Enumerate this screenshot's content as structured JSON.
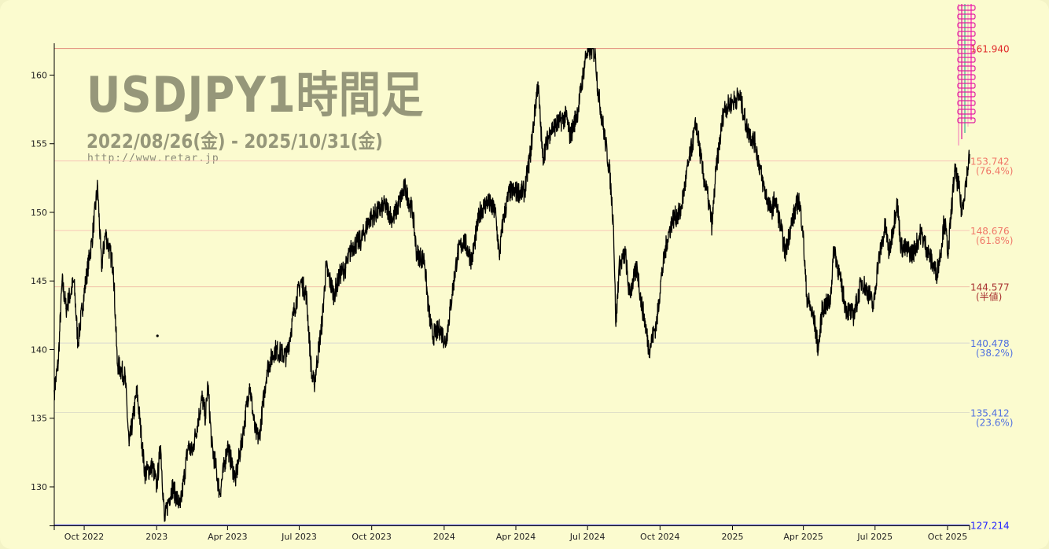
{
  "chart_data": {
    "type": "line",
    "title": "USDJPY1時間足",
    "subtitle": "2022/08/26(金) - 2025/10/31(金)",
    "watermark": "http://www.retar.jp",
    "xlabel": "",
    "ylabel": "",
    "xlim": [
      "2022-08-26",
      "2025-10-31"
    ],
    "ylim": [
      127.214,
      161.94
    ],
    "grid": false,
    "y_ticks": [
      130,
      135,
      140,
      145,
      150,
      155,
      160
    ],
    "x_ticks": [
      {
        "date": "2022-10-01",
        "label": "Oct 2022"
      },
      {
        "date": "2023-01-01",
        "label": "2023"
      },
      {
        "date": "2023-04-01",
        "label": "Apr 2023"
      },
      {
        "date": "2023-07-01",
        "label": "Jul 2023"
      },
      {
        "date": "2023-10-01",
        "label": "Oct 2023"
      },
      {
        "date": "2024-01-01",
        "label": "2024"
      },
      {
        "date": "2024-04-01",
        "label": "Apr 2024"
      },
      {
        "date": "2024-07-01",
        "label": "Jul 2024"
      },
      {
        "date": "2024-10-01",
        "label": "Oct 2024"
      },
      {
        "date": "2025-01-01",
        "label": "2025"
      },
      {
        "date": "2025-04-01",
        "label": "Apr 2025"
      },
      {
        "date": "2025-07-01",
        "label": "Jul 2025"
      },
      {
        "date": "2025-10-01",
        "label": "Oct 2025"
      }
    ],
    "fib_levels": [
      {
        "value": 161.94,
        "label": "161.940",
        "pct": "",
        "color": "#e02a2a",
        "line": "#e08a7a"
      },
      {
        "value": 153.742,
        "label": "153.742",
        "pct": "(76.4%)",
        "color": "#f07868",
        "line": "#f8c8b8"
      },
      {
        "value": 148.676,
        "label": "148.676",
        "pct": "(61.8%)",
        "color": "#f07868",
        "line": "#f8c8b8"
      },
      {
        "value": 144.577,
        "label": "144.577",
        "pct": "(半値)",
        "color": "#a83030",
        "line": "#f0c0a8"
      },
      {
        "value": 140.478,
        "label": "140.478",
        "pct": "(38.2%)",
        "color": "#5070e0",
        "line": "#d8d8d0"
      },
      {
        "value": 135.412,
        "label": "135.412",
        "pct": "(23.6%)",
        "color": "#5070e0",
        "line": "#e0e0c8"
      },
      {
        "value": 127.214,
        "label": "127.214",
        "pct": "",
        "color": "#2020ff",
        "line": "#8080e0"
      }
    ],
    "series": [
      {
        "color": "#000000",
        "x": [
          "2022-08-26",
          "2022-08-31",
          "2022-09-05",
          "2022-09-10",
          "2022-09-20",
          "2022-09-25",
          "2022-10-05",
          "2022-10-13",
          "2022-10-20",
          "2022-10-25",
          "2022-10-30",
          "2022-11-09",
          "2022-11-14",
          "2022-11-24",
          "2022-11-29",
          "2022-12-09",
          "2022-12-19",
          "2022-12-29",
          "2023-01-03",
          "2023-01-08",
          "2023-01-13",
          "2023-01-18",
          "2023-01-23",
          "2023-02-02",
          "2023-02-12",
          "2023-02-17",
          "2023-03-02",
          "2023-03-06",
          "2023-03-09",
          "2023-03-14",
          "2023-03-19",
          "2023-03-24",
          "2023-04-03",
          "2023-04-13",
          "2023-04-23",
          "2023-05-01",
          "2023-05-08",
          "2023-05-13",
          "2023-05-23",
          "2023-06-02",
          "2023-06-17",
          "2023-06-27",
          "2023-07-05",
          "2023-07-12",
          "2023-07-19",
          "2023-07-22",
          "2023-08-01",
          "2023-08-06",
          "2023-08-16",
          "2023-08-24",
          "2023-08-31",
          "2023-09-08",
          "2023-09-20",
          "2023-09-30",
          "2023-10-10",
          "2023-10-20",
          "2023-10-30",
          "2023-11-14",
          "2023-11-24",
          "2023-11-29",
          "2023-12-09",
          "2023-12-14",
          "2023-12-19",
          "2023-12-29",
          "2024-01-05",
          "2024-01-13",
          "2024-01-20",
          "2024-01-28",
          "2024-02-07",
          "2024-02-17",
          "2024-02-27",
          "2024-03-08",
          "2024-03-13",
          "2024-03-18",
          "2024-03-26",
          "2024-04-14",
          "2024-04-22",
          "2024-05-01",
          "2024-05-07",
          "2024-05-17",
          "2024-05-27",
          "2024-06-06",
          "2024-06-11",
          "2024-06-21",
          "2024-07-01",
          "2024-07-08",
          "2024-07-13",
          "2024-07-16",
          "2024-07-26",
          "2024-07-31",
          "2024-08-05",
          "2024-08-08",
          "2024-08-12",
          "2024-08-20",
          "2024-08-25",
          "2024-09-04",
          "2024-09-09",
          "2024-09-14",
          "2024-09-19",
          "2024-09-29",
          "2024-10-04",
          "2024-10-12",
          "2024-10-19",
          "2024-10-29",
          "2024-11-08",
          "2024-11-18",
          "2024-11-26",
          "2024-12-03",
          "2024-12-08",
          "2024-12-13",
          "2024-12-23",
          "2025-01-02",
          "2025-01-12",
          "2025-01-22",
          "2025-02-01",
          "2025-02-11",
          "2025-02-21",
          "2025-02-26",
          "2025-03-05",
          "2025-03-11",
          "2025-03-18",
          "2025-03-28",
          "2025-04-02",
          "2025-04-07",
          "2025-04-17",
          "2025-04-22",
          "2025-04-27",
          "2025-05-07",
          "2025-05-12",
          "2025-05-20",
          "2025-05-27",
          "2025-06-06",
          "2025-06-16",
          "2025-06-26",
          "2025-07-01",
          "2025-07-06",
          "2025-07-16",
          "2025-07-21",
          "2025-07-31",
          "2025-08-05",
          "2025-08-20",
          "2025-08-30",
          "2025-09-09",
          "2025-09-19",
          "2025-09-24",
          "2025-09-29",
          "2025-10-04",
          "2025-10-07",
          "2025-10-12",
          "2025-10-17",
          "2025-10-21",
          "2025-10-27",
          "2025-10-31"
        ],
        "values": [
          137,
          139,
          145,
          143,
          145,
          140.5,
          145,
          148,
          151.9,
          146,
          148.5,
          146,
          139,
          138,
          133,
          137,
          131,
          131.5,
          130,
          133,
          127.5,
          129,
          130,
          128.5,
          133,
          132.5,
          136.5,
          135,
          137.5,
          133,
          131.5,
          129.5,
          133,
          130.5,
          134,
          137.5,
          134,
          133.5,
          138.5,
          140,
          139.5,
          143,
          145,
          144,
          138,
          137.5,
          142,
          146,
          144,
          145.5,
          146,
          147.5,
          148,
          149.5,
          150,
          150.5,
          149.5,
          151.8,
          150,
          147,
          146.5,
          143,
          141,
          141.5,
          140.5,
          144,
          147,
          148,
          146.5,
          150,
          150.8,
          150,
          146.8,
          149.5,
          151.5,
          151.5,
          154.5,
          159.5,
          154,
          156,
          156.5,
          157,
          155.5,
          157.5,
          161.5,
          161.9,
          161.5,
          159,
          155,
          153,
          149,
          141.7,
          146,
          147,
          144,
          146,
          143.5,
          142,
          140,
          142,
          145,
          148,
          149.5,
          150,
          153.5,
          156.5,
          153,
          151,
          149,
          153,
          157.5,
          158,
          158.5,
          156,
          155,
          152,
          150,
          151,
          149,
          147,
          149,
          151,
          149,
          144,
          142,
          140,
          143,
          143.5,
          147.5,
          145,
          143,
          142.5,
          145,
          144,
          143,
          146,
          149,
          147,
          150.8,
          147.5,
          147,
          148.5,
          147,
          145.5,
          147,
          149.5,
          147,
          149.5,
          153,
          152,
          150,
          152.5,
          154.2
        ]
      }
    ],
    "outlier_points": [
      {
        "x": "2023-01-04",
        "y": 141.0
      }
    ]
  }
}
